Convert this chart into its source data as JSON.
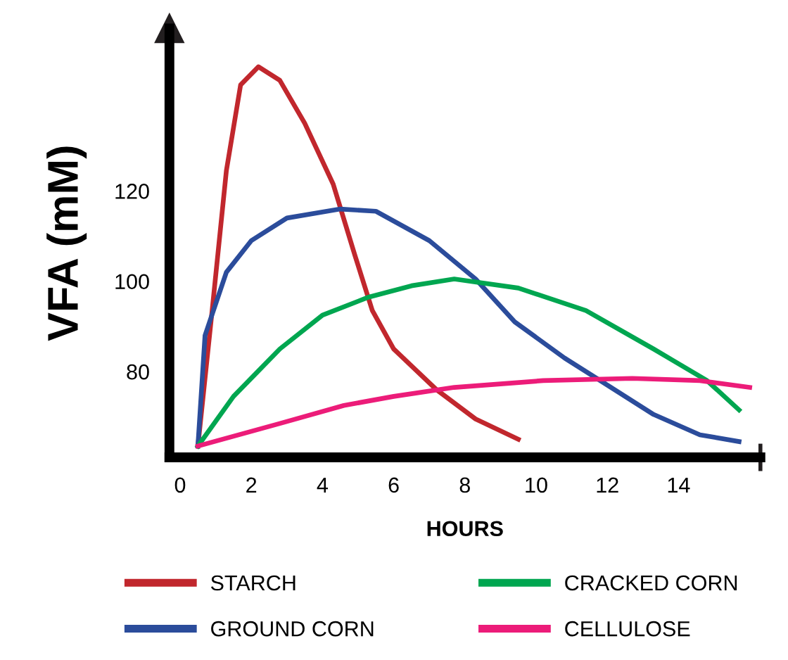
{
  "chart_data": {
    "type": "line",
    "xlabel": "HOURS",
    "ylabel": "VFA (mM)",
    "xlim": [
      -0.3,
      16.3
    ],
    "ylim": [
      61,
      156
    ],
    "xticks": [
      0,
      2,
      4,
      6,
      8,
      10,
      12,
      14
    ],
    "yticks": [
      80,
      100,
      120
    ],
    "grid": false,
    "legend": "bottom",
    "marker": "none",
    "line_style": "solid",
    "series": [
      {
        "name": "STARCH",
        "color": "#c1272d",
        "x": [
          0.5,
          0.9,
          1.3,
          1.7,
          2.2,
          2.8,
          3.5,
          4.3,
          4.9,
          5.4,
          6.0,
          7.2,
          8.3,
          9.5
        ],
        "values": [
          63.5,
          93.5,
          124.5,
          143.5,
          147.5,
          144.5,
          135,
          121.5,
          106,
          93.5,
          85,
          76,
          69.5,
          65
        ]
      },
      {
        "name": "GROUND CORN",
        "color": "#2b4c9b",
        "x": [
          0.5,
          0.7,
          1.3,
          2.0,
          3.0,
          4.5,
          5.5,
          7.0,
          8.3,
          9.4,
          10.8,
          11.8,
          13.3,
          14.6,
          15.7
        ],
        "values": [
          63.5,
          88,
          102,
          109,
          114,
          116,
          115.5,
          109,
          100.5,
          91,
          83,
          78,
          70.5,
          66,
          64.5
        ]
      },
      {
        "name": "CRACKED CORN",
        "color": "#00a650",
        "x": [
          0.5,
          1.5,
          2.8,
          4.0,
          5.3,
          6.5,
          7.7,
          9.5,
          11.4,
          13.3,
          14.8,
          15.7
        ],
        "values": [
          63.5,
          74.5,
          85,
          92.5,
          96.5,
          99,
          100.5,
          98.5,
          93.5,
          85,
          78,
          71.5
        ]
      },
      {
        "name": "CELLULOSE",
        "color": "#ec1c79",
        "x": [
          0.5,
          2.8,
          4.6,
          6.0,
          7.7,
          10.2,
          12.7,
          14.6,
          16.0
        ],
        "values": [
          63.5,
          68.5,
          72.5,
          74.5,
          76.5,
          78,
          78.5,
          78,
          76.5
        ]
      }
    ]
  }
}
